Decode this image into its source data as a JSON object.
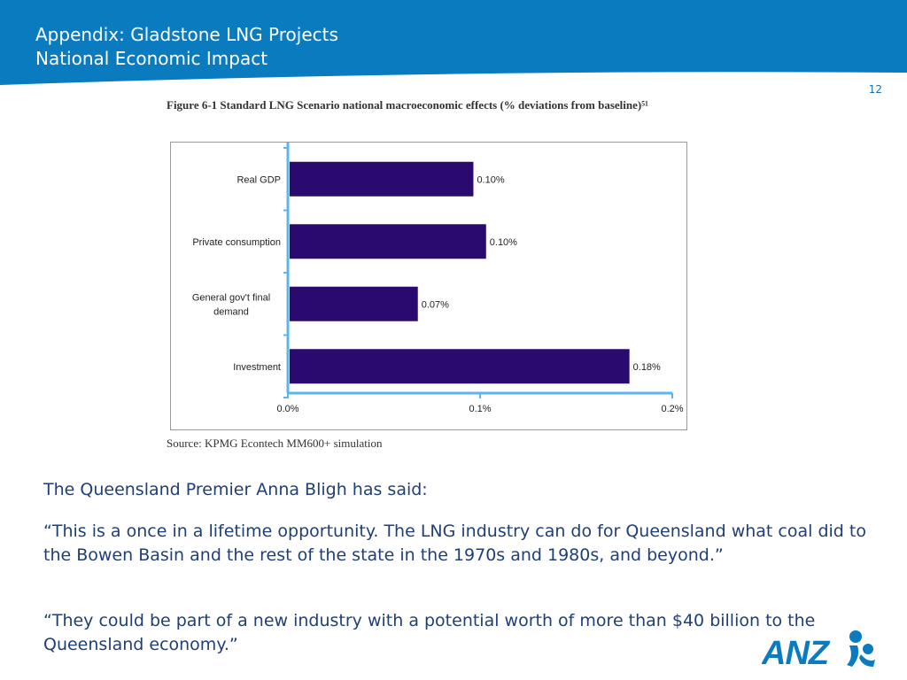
{
  "header": {
    "title_line_1": "Appendix: Gladstone LNG Projects",
    "title_line_2": "National Economic Impact",
    "page_number": "12",
    "band_color": "#0a7bbf"
  },
  "figure": {
    "caption": "Figure 6-1 Standard LNG Scenario national macroeconomic effects (% deviations from baseline)⁵¹",
    "source": "Source: KPMG Econtech MM600+ simulation"
  },
  "chart_data": {
    "type": "bar",
    "orientation": "horizontal",
    "categories": [
      "Real GDP",
      "Private consumption",
      "General gov't final demand",
      "Investment"
    ],
    "category_lines": [
      [
        "Real GDP"
      ],
      [
        "Private consumption"
      ],
      [
        "General gov't final",
        "demand"
      ],
      [
        "Investment"
      ]
    ],
    "values": [
      0.0956,
      0.1022,
      0.0667,
      0.1768
    ],
    "data_labels": [
      "0.10%",
      "0.10%",
      "0.07%",
      "0.18%"
    ],
    "xlim": [
      0,
      0.2
    ],
    "x_ticks": [
      0,
      0.1,
      0.2
    ],
    "x_tick_labels": [
      "0.0%",
      "0.1%",
      "0.2%"
    ],
    "bar_color": "#2a0a6e",
    "axis_color": "#5fb4f0",
    "grid": false,
    "legend": "none"
  },
  "body": {
    "intro": "The Queensland Premier Anna Bligh has said:",
    "quote_1": "“This is a once in a lifetime opportunity. The LNG industry can do for Queensland what coal did to the Bowen Basin and the rest of the state in the 1970s and 1980s, and beyond.”",
    "quote_2": "“They could be part of a new industry with a potential worth of more than $40 billion to the Queensland economy.”"
  },
  "logo": {
    "text": "ANZ",
    "color": "#0a7bbf",
    "icon": "anz-figures-icon"
  }
}
